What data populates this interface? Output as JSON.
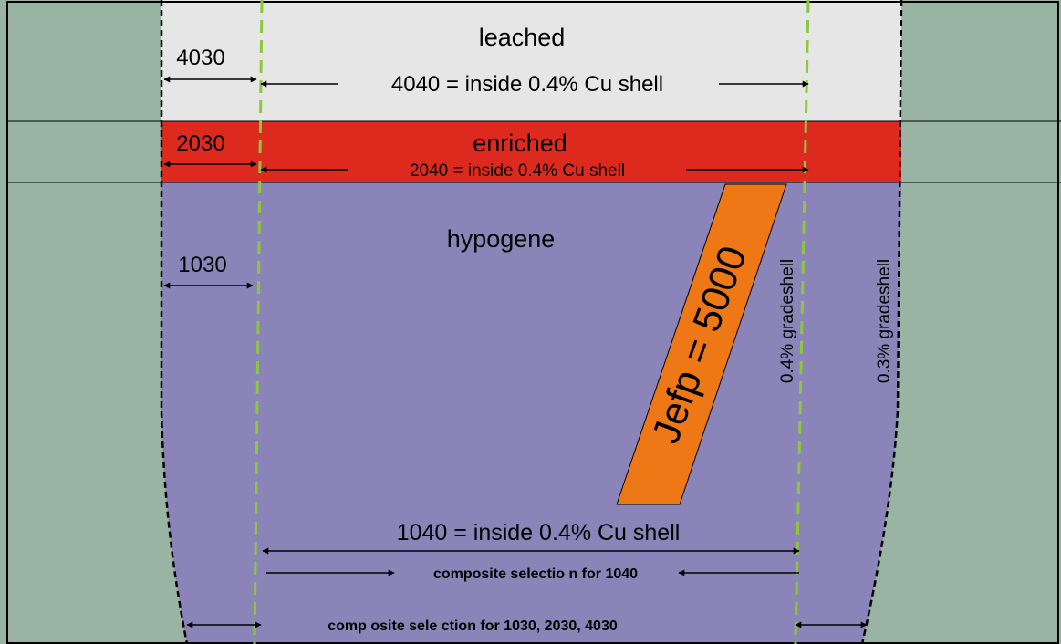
{
  "zones": {
    "leached": "leached",
    "enriched": "enriched",
    "hypogene": "hypogene"
  },
  "dimensions": {
    "leached_outer": "4030",
    "leached_inner": "4040 = inside 0.4% Cu shell",
    "enriched_outer": "2030",
    "enriched_inner": "2040 = inside 0.4% Cu shell",
    "hypogene_outer": "1030",
    "hypogene_inner": "1040 = inside 0.4% Cu shell"
  },
  "dike_label": "Jefp = 5000",
  "shells": {
    "inner": "0.4% gradeshell",
    "outer": "0.3% gradeshell"
  },
  "composites": {
    "inner": "composite selectio n for 1040",
    "outer": "comp osite sele ction for 1030, 2030, 4030"
  },
  "colors": {
    "background": "#9ab4a4",
    "leached": "#e6e6e6",
    "enriched": "#de2a1e",
    "hypogene": "#8a84b8",
    "dike": "#ee7716",
    "shell_inner": "#8cc83c",
    "shell_outer": "#000000"
  }
}
